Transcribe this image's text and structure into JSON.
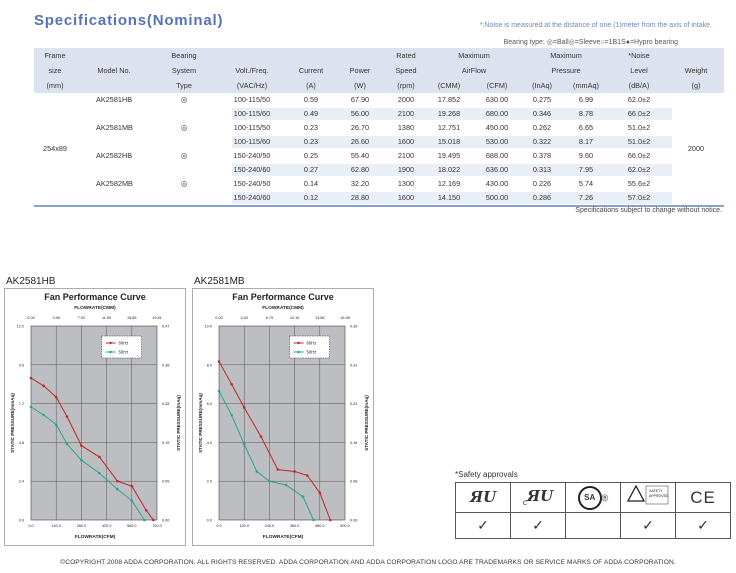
{
  "title": "Specifications(Nominal)",
  "noise_note": "*:Noise is measured at the distance of one (1)meter from the axis of intake.",
  "bearing_key": "Bearing type: ◎=Ball◎=Sleeve○=1B1S●=Hypro bearing",
  "columns": [
    [
      "Frame",
      "size",
      "(mm)"
    ],
    [
      "",
      "Model No.",
      ""
    ],
    [
      "Bearing",
      "System",
      "Type"
    ],
    [
      "",
      "Volt./Freq.",
      "(VAC/Hz)"
    ],
    [
      "",
      "Current",
      "(A)"
    ],
    [
      "",
      "Power",
      "(W)"
    ],
    [
      "Rated",
      "Speed",
      "(rpm)"
    ],
    [
      "Maximum",
      "AirFlow",
      ""
    ],
    [
      "Maximum",
      "Pressure",
      ""
    ],
    [
      "*Noise",
      "Level",
      "(dB/A)"
    ],
    [
      "",
      "Weight",
      "(g)"
    ]
  ],
  "unit_row": [
    "(CMM)",
    "(CFM)",
    "(InAq)",
    "(mmAq)"
  ],
  "frame_size": "254x89",
  "weight": "2000",
  "rows": [
    {
      "model": "AK2581HB",
      "bearing": "◎",
      "volt": "100-115/50",
      "current": "0.59",
      "power": "67.90",
      "speed": "2000",
      "cmm": "17.852",
      "cfm": "630.00",
      "inaq": "0.275",
      "mmaq": "6.99",
      "noise": "62.0±2"
    },
    {
      "model": "",
      "bearing": "",
      "volt": "100-115/60",
      "current": "0.49",
      "power": "56.00",
      "speed": "2100",
      "cmm": "19.268",
      "cfm": "680.00",
      "inaq": "0.346",
      "mmaq": "8.78",
      "noise": "66.0±2"
    },
    {
      "model": "AK2581MB",
      "bearing": "◎",
      "volt": "100-115/50",
      "current": "0.23",
      "power": "26.70",
      "speed": "1380",
      "cmm": "12.751",
      "cfm": "450.00",
      "inaq": "0.262",
      "mmaq": "6.65",
      "noise": "51.0±2"
    },
    {
      "model": "",
      "bearing": "",
      "volt": "100-115/60",
      "current": "0.23",
      "power": "26.60",
      "speed": "1600",
      "cmm": "15.018",
      "cfm": "530.00",
      "inaq": "0.322",
      "mmaq": "8.17",
      "noise": "51.0±2"
    },
    {
      "model": "AK2582HB",
      "bearing": "◎",
      "volt": "150-240/50",
      "current": "0.25",
      "power": "55.40",
      "speed": "2100",
      "cmm": "19.495",
      "cfm": "688.00",
      "inaq": "0.378",
      "mmaq": "9.60",
      "noise": "66.0±2"
    },
    {
      "model": "",
      "bearing": "",
      "volt": "150-240/60",
      "current": "0.27",
      "power": "62.80",
      "speed": "1900",
      "cmm": "18.022",
      "cfm": "636.00",
      "inaq": "0.313",
      "mmaq": "7.95",
      "noise": "62.0±2"
    },
    {
      "model": "AK2582MB",
      "bearing": "◎",
      "volt": "150-240/50",
      "current": "0.14",
      "power": "32.20",
      "speed": "1300",
      "cmm": "12.169",
      "cfm": "430.00",
      "inaq": "0.226",
      "mmaq": "5.74",
      "noise": "55.6±2"
    },
    {
      "model": "",
      "bearing": "",
      "volt": "150-240/60",
      "current": "0.12",
      "power": "28.80",
      "speed": "1600",
      "cmm": "14.150",
      "cfm": "500.00",
      "inaq": "0.286",
      "mmaq": "7.26",
      "noise": "57.0±2"
    }
  ],
  "spec_footnote": "Specifications subject to change without notice.",
  "chart_data": [
    {
      "type": "line",
      "model_label": "AK2581HB",
      "title": "Fan Performance Curve",
      "top_axis_title": "FLOWRATE(CMM)",
      "top_ticks": [
        "0.00",
        "3.96",
        "7.92",
        "11.89",
        "15.85",
        "19.81"
      ],
      "xlabel": "FLOWRATE(CFM)",
      "x_ticks": [
        "0.0",
        "140.0",
        "280.0",
        "420.0",
        "560.0",
        "700.0"
      ],
      "xlim": [
        0,
        700
      ],
      "ylabel": "STATIC PRESSURE(mmAq)",
      "y_ticks": [
        "0.0",
        "2.4",
        "4.8",
        "7.2",
        "9.6",
        "12.0"
      ],
      "ylim": [
        0,
        12
      ],
      "ylabel_right": "STATIC PRESSURE(InAq)",
      "y2_ticks": [
        "0.00",
        "0.09",
        "0.19",
        "0.28",
        "0.38",
        "0.47"
      ],
      "series": [
        {
          "name": "60Hz",
          "color": "#c0272d",
          "x": [
            0,
            70,
            140,
            200,
            280,
            380,
            480,
            560,
            640,
            680
          ],
          "y": [
            8.78,
            8.3,
            7.6,
            6.4,
            4.6,
            3.9,
            2.4,
            2.1,
            0.6,
            0
          ]
        },
        {
          "name": "50Hz",
          "color": "#2aa58a",
          "x": [
            0,
            70,
            140,
            200,
            280,
            380,
            480,
            560,
            630
          ],
          "y": [
            6.99,
            6.5,
            5.9,
            4.7,
            3.7,
            2.9,
            1.9,
            1.2,
            0
          ]
        }
      ]
    },
    {
      "type": "line",
      "model_label": "AK2581MB",
      "title": "Fan Performance Curve",
      "top_axis_title": "FLOWRATE(CMM)",
      "top_ticks": [
        "0.00",
        "3.40",
        "6.79",
        "10.19",
        "13.58",
        "16.98"
      ],
      "xlabel": "FLOWRATE(CFM)",
      "x_ticks": [
        "0.0",
        "120.0",
        "240.0",
        "360.0",
        "480.0",
        "600.0"
      ],
      "xlim": [
        0,
        600
      ],
      "ylabel": "STATIC PRESSURE(mmAq)",
      "y_ticks": [
        "0.0",
        "2.0",
        "4.0",
        "6.0",
        "8.0",
        "10.0"
      ],
      "ylim": [
        0,
        10
      ],
      "ylabel_right": "STATIC PRESSURE(InAq)",
      "y2_ticks": [
        "0.00",
        "0.08",
        "0.16",
        "0.23",
        "0.31",
        "0.39"
      ],
      "series": [
        {
          "name": "60Hz",
          "color": "#c0272d",
          "x": [
            0,
            60,
            120,
            200,
            280,
            360,
            420,
            480,
            530
          ],
          "y": [
            8.17,
            7.0,
            5.8,
            4.3,
            2.6,
            2.5,
            2.3,
            1.4,
            0
          ]
        },
        {
          "name": "50Hz",
          "color": "#2aa58a",
          "x": [
            0,
            60,
            120,
            180,
            240,
            320,
            400,
            450
          ],
          "y": [
            6.65,
            5.4,
            3.9,
            2.5,
            2.0,
            1.8,
            1.2,
            0
          ]
        }
      ]
    }
  ],
  "safety": {
    "title": "*Safety approvals",
    "logos": [
      "UR",
      "cUR",
      "CSA",
      "TUV",
      "CE"
    ],
    "ur_text": "ЯU",
    "cur_c": "c",
    "cur_text": "ЯU",
    "csa_text": "SA",
    "csa_r": "®",
    "ce_text": "CE",
    "tuv_line1": "SAFETY",
    "tuv_line2": "APPROVED",
    "checks": [
      "✓",
      "✓",
      "",
      "✓",
      "✓"
    ]
  },
  "copyright": "©COPYRIGHT 2008 ADDA CORPORATION. ALL RIGHTS RESERVED. ADDA CORPORATION AND ADDA  CORPORATION LOGO ARE TRADEMARKS OR SERVICE MARKS OF ADDA CORPORATION."
}
